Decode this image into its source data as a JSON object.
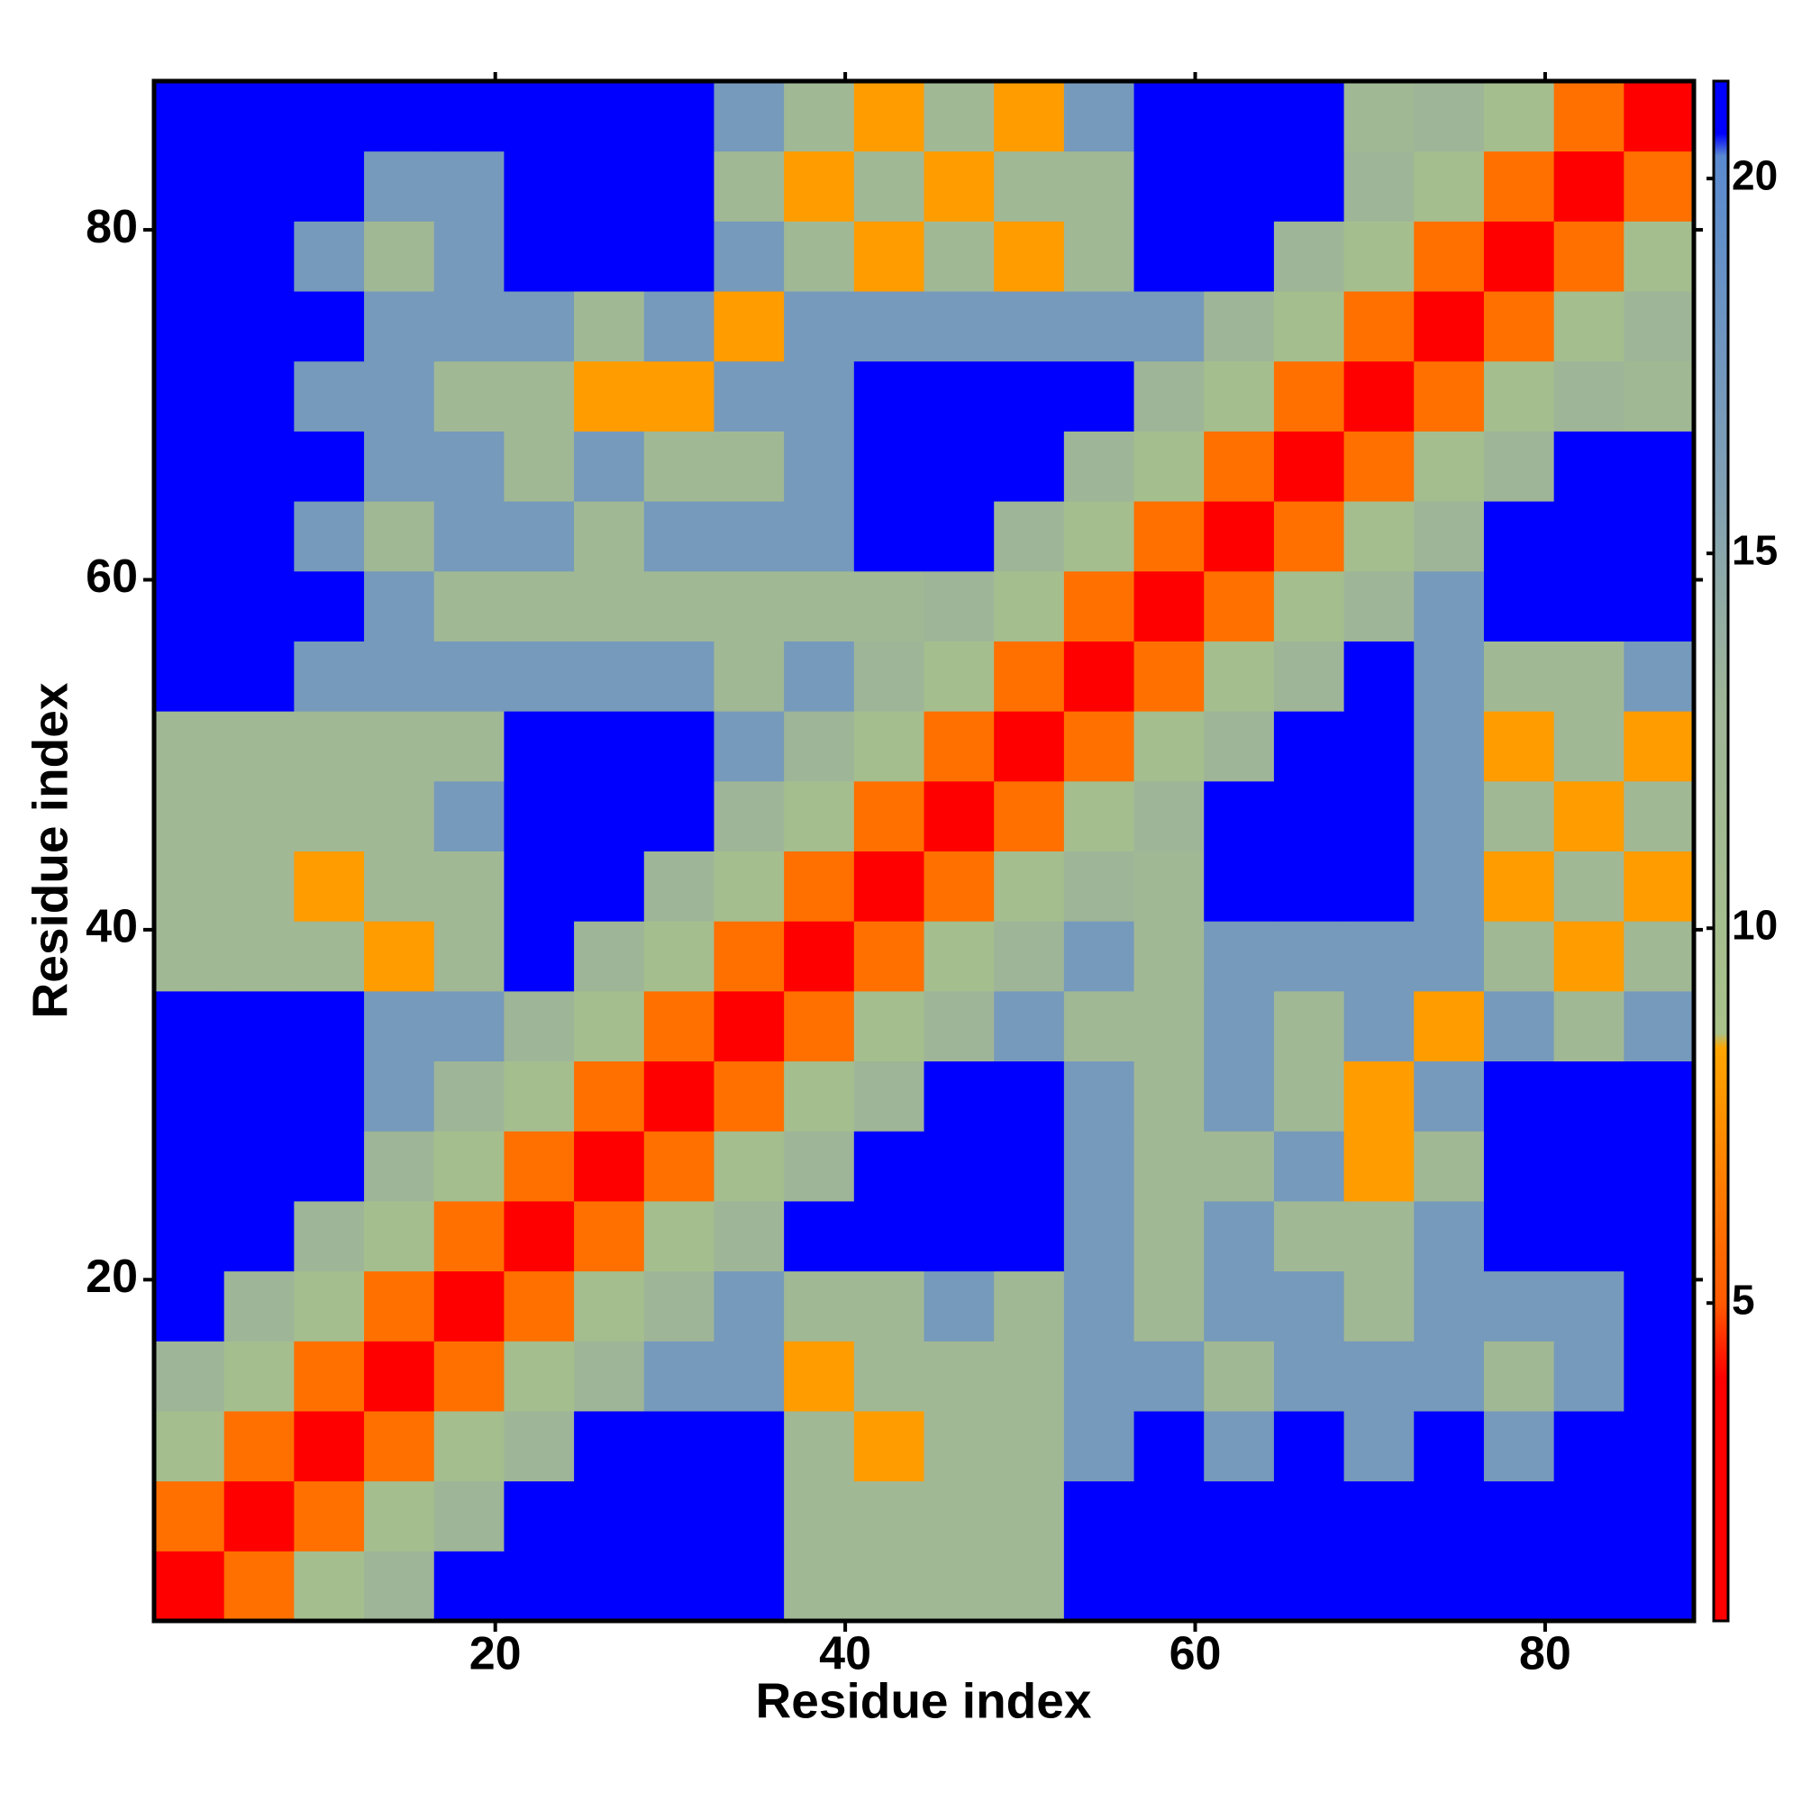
{
  "chart_data": {
    "type": "heatmap",
    "xlabel": "Residue index",
    "ylabel": "Residue index",
    "xbins": [
      0.5,
      4.5,
      8.5,
      12.5,
      16.5,
      20.5,
      24.5,
      28.5,
      32.5,
      36.5,
      40.5,
      44.5,
      48.5,
      52.5,
      56.5,
      60.5,
      64.5,
      68.5,
      72.5,
      76.5,
      80.5,
      84.5,
      88.5
    ],
    "ybins": [
      0.5,
      4.5,
      8.5,
      12.5,
      16.5,
      20.5,
      24.5,
      28.5,
      32.5,
      36.5,
      40.5,
      44.5,
      48.5,
      52.5,
      56.5,
      60.5,
      64.5,
      68.5,
      72.5,
      76.5,
      80.5,
      84.5,
      88.5
    ],
    "z": [
      [
        2,
        6,
        10,
        13,
        21,
        21,
        21,
        21,
        21,
        12,
        12,
        12,
        12,
        21,
        21,
        21,
        21,
        21,
        21,
        21,
        21,
        21
      ],
      [
        6,
        2,
        6,
        10,
        13,
        21,
        21,
        21,
        21,
        12,
        12,
        12,
        12,
        21,
        21,
        21,
        21,
        21,
        21,
        21,
        21,
        21
      ],
      [
        10,
        6,
        2,
        6,
        10,
        13,
        21,
        21,
        21,
        12,
        8,
        12,
        12,
        17,
        21,
        17,
        21,
        17,
        21,
        17,
        21,
        21
      ],
      [
        13,
        10,
        6,
        2,
        6,
        10,
        13,
        17,
        17,
        8,
        12,
        12,
        12,
        17,
        17,
        12,
        17,
        17,
        17,
        12,
        17,
        21
      ],
      [
        21,
        13,
        10,
        6,
        2,
        6,
        10,
        13,
        17,
        12,
        12,
        17,
        12,
        17,
        12,
        17,
        17,
        12,
        17,
        17,
        17,
        21
      ],
      [
        21,
        21,
        13,
        10,
        6,
        2,
        6,
        10,
        13,
        21,
        21,
        21,
        21,
        17,
        12,
        17,
        12,
        12,
        17,
        21,
        21,
        21
      ],
      [
        21,
        21,
        21,
        13,
        10,
        6,
        2,
        6,
        10,
        13,
        21,
        21,
        21,
        17,
        12,
        12,
        17,
        8,
        12,
        21,
        21,
        21
      ],
      [
        21,
        21,
        21,
        17,
        13,
        10,
        6,
        2,
        6,
        10,
        13,
        21,
        21,
        17,
        12,
        17,
        12,
        8,
        17,
        21,
        21,
        21
      ],
      [
        21,
        21,
        21,
        17,
        17,
        13,
        10,
        6,
        2,
        6,
        10,
        13,
        17,
        12,
        12,
        17,
        12,
        17,
        8,
        17,
        12,
        17
      ],
      [
        12,
        12,
        12,
        8,
        12,
        21,
        13,
        10,
        6,
        2,
        6,
        10,
        13,
        17,
        12,
        17,
        17,
        17,
        17,
        12,
        8,
        12
      ],
      [
        12,
        12,
        8,
        12,
        12,
        21,
        21,
        13,
        10,
        6,
        2,
        6,
        10,
        13,
        12,
        21,
        21,
        21,
        17,
        8,
        12,
        8
      ],
      [
        12,
        12,
        12,
        12,
        17,
        21,
        21,
        21,
        13,
        10,
        6,
        2,
        6,
        10,
        13,
        21,
        21,
        21,
        17,
        12,
        8,
        12
      ],
      [
        12,
        12,
        12,
        12,
        12,
        21,
        21,
        21,
        17,
        13,
        10,
        6,
        2,
        6,
        10,
        13,
        21,
        21,
        17,
        8,
        12,
        8
      ],
      [
        21,
        21,
        17,
        17,
        17,
        17,
        17,
        17,
        12,
        17,
        13,
        10,
        6,
        2,
        6,
        10,
        13,
        21,
        17,
        12,
        12,
        17
      ],
      [
        21,
        21,
        21,
        17,
        12,
        12,
        12,
        12,
        12,
        12,
        12,
        13,
        10,
        6,
        2,
        6,
        10,
        13,
        17,
        21,
        21,
        21
      ],
      [
        21,
        21,
        17,
        12,
        17,
        17,
        12,
        17,
        17,
        17,
        21,
        21,
        13,
        10,
        6,
        2,
        6,
        10,
        13,
        21,
        21,
        21
      ],
      [
        21,
        21,
        21,
        17,
        17,
        12,
        17,
        12,
        12,
        17,
        21,
        21,
        21,
        13,
        10,
        6,
        2,
        6,
        10,
        13,
        21,
        21
      ],
      [
        21,
        21,
        17,
        17,
        12,
        12,
        8,
        8,
        17,
        17,
        21,
        21,
        21,
        21,
        13,
        10,
        6,
        2,
        6,
        10,
        13,
        12
      ],
      [
        21,
        21,
        21,
        17,
        17,
        17,
        12,
        17,
        8,
        17,
        17,
        17,
        17,
        17,
        17,
        13,
        10,
        6,
        2,
        6,
        10,
        13
      ],
      [
        21,
        21,
        17,
        12,
        17,
        21,
        21,
        21,
        17,
        12,
        8,
        12,
        8,
        12,
        21,
        21,
        13,
        10,
        6,
        2,
        6,
        10
      ],
      [
        21,
        21,
        21,
        17,
        17,
        21,
        21,
        21,
        12,
        8,
        12,
        8,
        12,
        12,
        21,
        21,
        21,
        13,
        10,
        6,
        2,
        6
      ],
      [
        21,
        21,
        21,
        21,
        21,
        21,
        21,
        21,
        17,
        12,
        8,
        12,
        8,
        17,
        21,
        21,
        21,
        12,
        13,
        10,
        6,
        2
      ]
    ],
    "xlim": [
      0.5,
      88.5
    ],
    "ylim": [
      0.5,
      88.5
    ],
    "xticks": [
      20,
      40,
      60,
      80
    ],
    "yticks": [
      20,
      40,
      60,
      80
    ],
    "clim": [
      0.76,
      21.3
    ],
    "cticks": [
      5,
      10,
      15,
      20
    ],
    "colorscale": [
      [
        0.76,
        "#ff0000"
      ],
      [
        4,
        "#ff0000"
      ],
      [
        5,
        "#ff5a00"
      ],
      [
        8.4,
        "#ffa500"
      ],
      [
        8.6,
        "#a8c28a"
      ],
      [
        13,
        "#9fb597"
      ],
      [
        16,
        "#7f9fb5"
      ],
      [
        20.3,
        "#5a8ad0"
      ],
      [
        20.6,
        "#0000ff"
      ],
      [
        21.3,
        "#0000ff"
      ]
    ]
  }
}
